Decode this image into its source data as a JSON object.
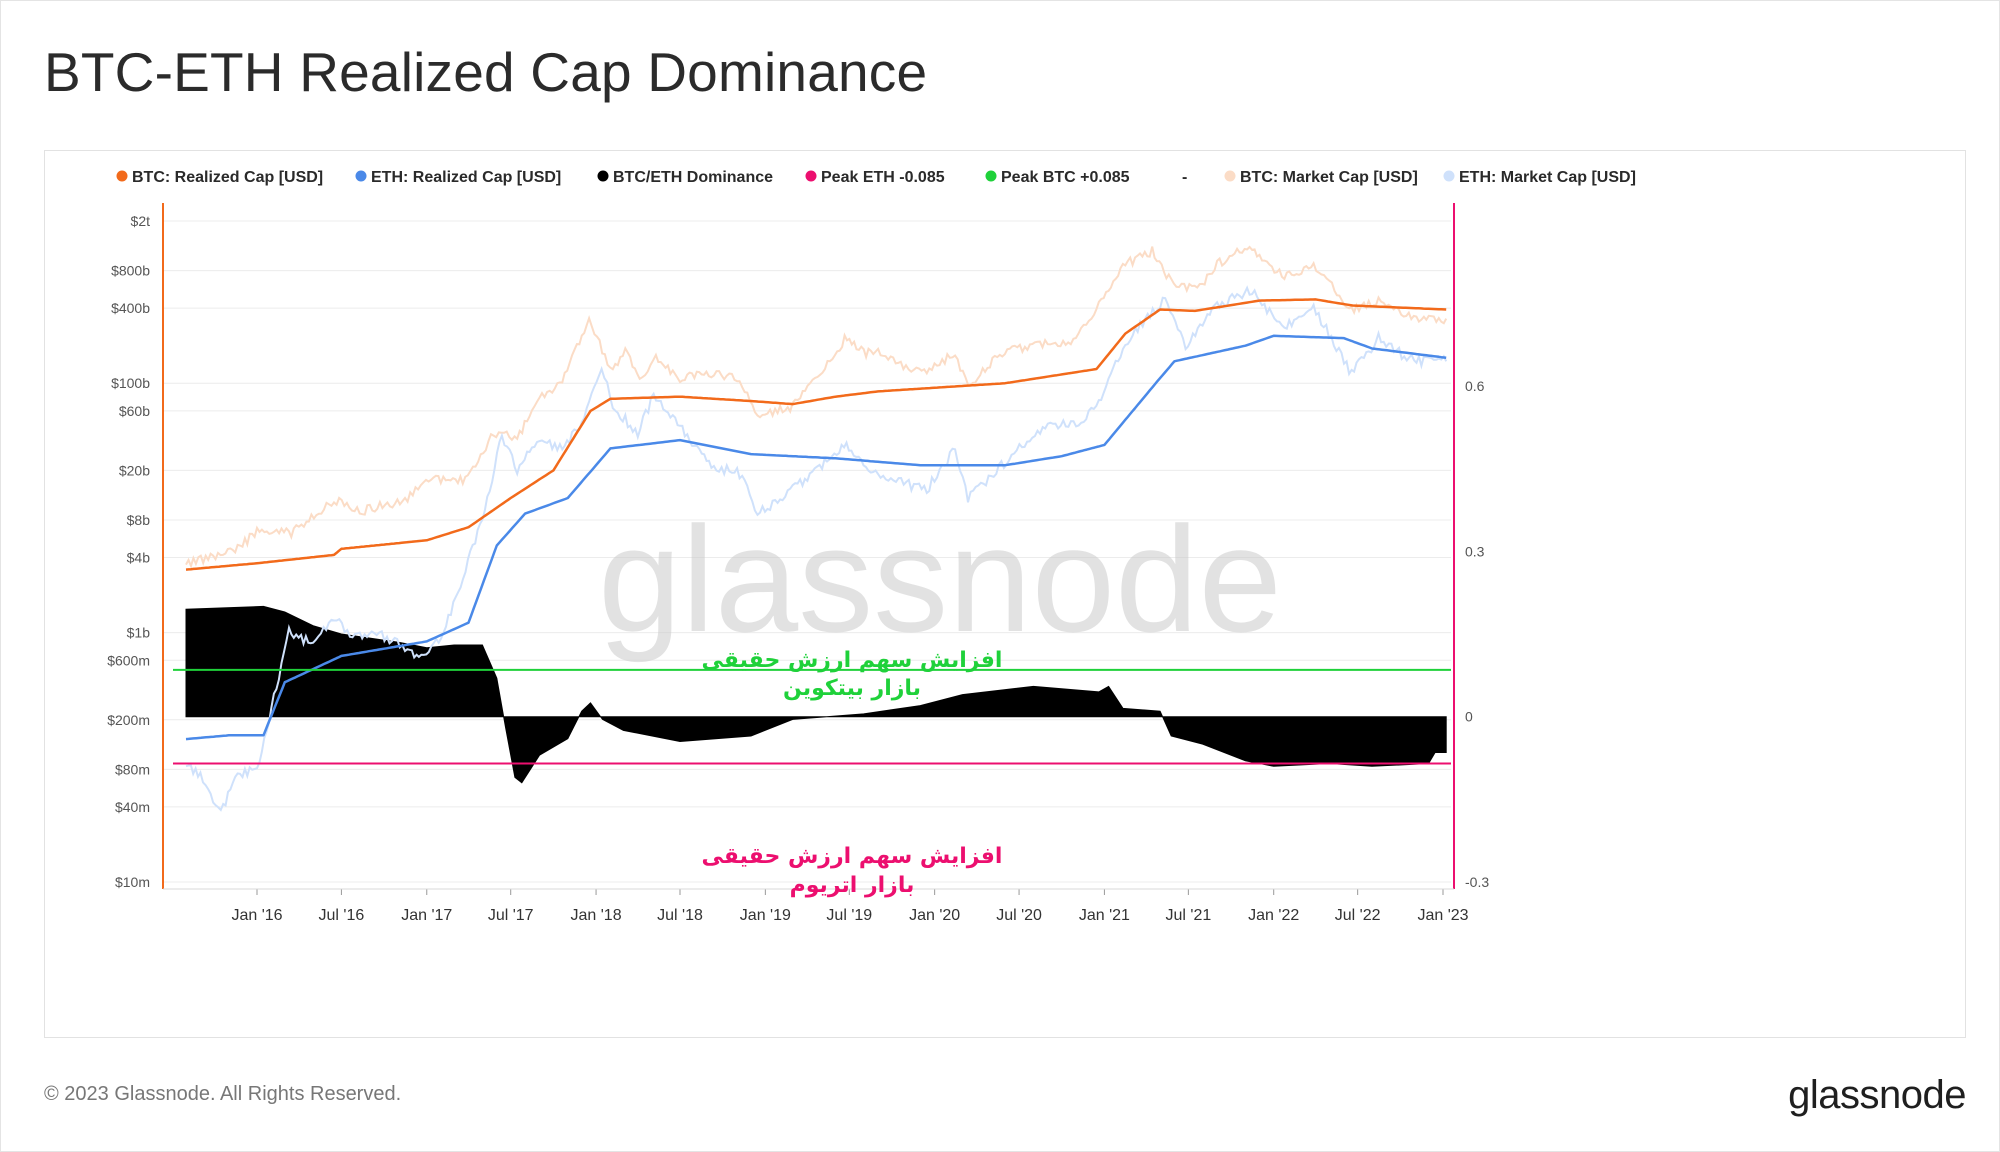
{
  "title": "BTC-ETH Realized Cap Dominance",
  "footer": {
    "copyright": "© 2023 Glassnode. All Rights Reserved.",
    "logo": "glassnode"
  },
  "watermark": "glassnode",
  "colors": {
    "btc_realized": "#f26a1b",
    "eth_realized": "#4a89e8",
    "dominance": "#000000",
    "peak_eth": "#ec0f6f",
    "peak_btc": "#1fd13a",
    "btc_market": "#fbdcc6",
    "eth_market": "#cfe1fb"
  },
  "legend": [
    {
      "label": "BTC: Realized Cap [USD]",
      "color": "#f26a1b"
    },
    {
      "label": "ETH: Realized Cap [USD]",
      "color": "#4a89e8"
    },
    {
      "label": "BTC/ETH Dominance",
      "color": "#000000"
    },
    {
      "label": "Peak ETH -0.085",
      "color": "#ec0f6f"
    },
    {
      "label": "Peak BTC +0.085",
      "color": "#1fd13a"
    },
    {
      "label": "-",
      "color": ""
    },
    {
      "label": "BTC: Market Cap [USD]",
      "color": "#fbdcc6"
    },
    {
      "label": "ETH: Market Cap [USD]",
      "color": "#cfe1fb"
    }
  ],
  "annotations": {
    "btc_zone": [
      "افزایش سهم  ارزش حقیقی",
      "بازار بیتکوین"
    ],
    "eth_zone": [
      "افزایش سهم  ارزش حقیقی",
      "بازار اتریوم"
    ]
  },
  "chart_data": {
    "type": "line",
    "title": "BTC-ETH Realized Cap Dominance",
    "x_axis": {
      "min": "2015-08-01",
      "max": "2023-01-10",
      "ticks": [
        {
          "date": "2016-01-01",
          "label": "Jan '16"
        },
        {
          "date": "2016-07-01",
          "label": "Jul '16"
        },
        {
          "date": "2017-01-01",
          "label": "Jan '17"
        },
        {
          "date": "2017-07-01",
          "label": "Jul '17"
        },
        {
          "date": "2018-01-01",
          "label": "Jan '18"
        },
        {
          "date": "2018-07-01",
          "label": "Jul '18"
        },
        {
          "date": "2019-01-01",
          "label": "Jan '19"
        },
        {
          "date": "2019-07-01",
          "label": "Jul '19"
        },
        {
          "date": "2020-01-01",
          "label": "Jan '20"
        },
        {
          "date": "2020-07-01",
          "label": "Jul '20"
        },
        {
          "date": "2021-01-01",
          "label": "Jan '21"
        },
        {
          "date": "2021-07-01",
          "label": "Jul '21"
        },
        {
          "date": "2022-01-01",
          "label": "Jan '22"
        },
        {
          "date": "2022-07-01",
          "label": "Jul '22"
        },
        {
          "date": "2023-01-01",
          "label": "Jan '23"
        }
      ]
    },
    "y_left": {
      "scale": "log",
      "range": [
        10000000,
        2000000000000
      ],
      "ticks": [
        {
          "value": 2000000000000,
          "label": "$2t"
        },
        {
          "value": 800000000000,
          "label": "$800b"
        },
        {
          "value": 400000000000,
          "label": "$400b"
        },
        {
          "value": 100000000000,
          "label": "$100b"
        },
        {
          "value": 60000000000,
          "label": "$60b"
        },
        {
          "value": 20000000000,
          "label": "$20b"
        },
        {
          "value": 8000000000,
          "label": "$8b"
        },
        {
          "value": 4000000000,
          "label": "$4b"
        },
        {
          "value": 1000000000,
          "label": "$1b"
        },
        {
          "value": 600000000,
          "label": "$600m"
        },
        {
          "value": 200000000,
          "label": "$200m"
        },
        {
          "value": 80000000,
          "label": "$80m"
        },
        {
          "value": 40000000,
          "label": "$40m"
        },
        {
          "value": 10000000,
          "label": "$10m"
        }
      ]
    },
    "y_right": {
      "scale": "linear",
      "range": [
        -0.3,
        0.7
      ],
      "ticks": [
        {
          "value": 0.6,
          "label": "0.6"
        },
        {
          "value": 0.3,
          "label": "0.3"
        },
        {
          "value": 0,
          "label": "0"
        },
        {
          "value": -0.3,
          "label": "-0.3"
        }
      ]
    },
    "grid": true,
    "legend_position": "top",
    "reference_lines": [
      {
        "name": "Peak BTC +0.085",
        "value": 0.085,
        "axis": "right"
      },
      {
        "name": "Peak ETH -0.085",
        "value": -0.085,
        "axis": "right"
      }
    ],
    "series": [
      {
        "name": "BTC: Market Cap [USD]",
        "axis": "left",
        "style": "jagged",
        "points": [
          [
            "2015-08-01",
            3600000000
          ],
          [
            "2015-11-15",
            4500000000
          ],
          [
            "2016-01-01",
            6500000000
          ],
          [
            "2016-03-15",
            6300000000
          ],
          [
            "2016-06-15",
            11500000000
          ],
          [
            "2016-08-15",
            9500000000
          ],
          [
            "2016-11-15",
            11500000000
          ],
          [
            "2017-01-05",
            17000000000
          ],
          [
            "2017-03-25",
            16500000000
          ],
          [
            "2017-05-25",
            40000000000
          ],
          [
            "2017-07-15",
            36000000000
          ],
          [
            "2017-09-01",
            75000000000
          ],
          [
            "2017-10-15",
            95000000000
          ],
          [
            "2017-12-17",
            320000000000
          ],
          [
            "2018-02-06",
            120000000000
          ],
          [
            "2018-03-05",
            190000000000
          ],
          [
            "2018-04-05",
            110000000000
          ],
          [
            "2018-05-10",
            160000000000
          ],
          [
            "2018-07-01",
            110000000000
          ],
          [
            "2018-09-01",
            120000000000
          ],
          [
            "2018-11-01",
            110000000000
          ],
          [
            "2018-12-15",
            55000000000
          ],
          [
            "2019-03-01",
            65000000000
          ],
          [
            "2019-05-15",
            140000000000
          ],
          [
            "2019-06-26",
            240000000000
          ],
          [
            "2019-08-01",
            175000000000
          ],
          [
            "2019-09-01",
            180000000000
          ],
          [
            "2019-10-20",
            140000000000
          ],
          [
            "2019-12-15",
            120000000000
          ],
          [
            "2020-02-14",
            180000000000
          ],
          [
            "2020-03-13",
            90000000000
          ],
          [
            "2020-05-15",
            170000000000
          ],
          [
            "2020-08-15",
            210000000000
          ],
          [
            "2020-10-15",
            210000000000
          ],
          [
            "2020-12-15",
            400000000000
          ],
          [
            "2021-02-15",
            900000000000
          ],
          [
            "2021-04-14",
            1150000000000
          ],
          [
            "2021-05-25",
            650000000000
          ],
          [
            "2021-07-20",
            560000000000
          ],
          [
            "2021-09-01",
            900000000000
          ],
          [
            "2021-11-10",
            1250000000000
          ],
          [
            "2022-01-24",
            700000000000
          ],
          [
            "2022-03-28",
            880000000000
          ],
          [
            "2022-05-12",
            570000000000
          ],
          [
            "2022-06-18",
            380000000000
          ],
          [
            "2022-08-15",
            460000000000
          ],
          [
            "2022-11-10",
            320000000000
          ],
          [
            "2023-01-08",
            330000000000
          ]
        ]
      },
      {
        "name": "ETH: Market Cap [USD]",
        "axis": "left",
        "style": "jagged",
        "points": [
          [
            "2015-08-01",
            90000000
          ],
          [
            "2015-09-01",
            70000000
          ],
          [
            "2015-10-15",
            35000000
          ],
          [
            "2015-11-15",
            70000000
          ],
          [
            "2016-01-01",
            80000000
          ],
          [
            "2016-02-01",
            250000000
          ],
          [
            "2016-03-10",
            1000000000
          ],
          [
            "2016-05-01",
            800000000
          ],
          [
            "2016-06-15",
            1300000000
          ],
          [
            "2016-07-25",
            900000000
          ],
          [
            "2016-09-15",
            1000000000
          ],
          [
            "2016-11-15",
            750000000
          ],
          [
            "2016-12-15",
            650000000
          ],
          [
            "2017-02-01",
            900000000
          ],
          [
            "2017-03-15",
            2500000000
          ],
          [
            "2017-05-01",
            8000000000
          ],
          [
            "2017-06-12",
            38000000000
          ],
          [
            "2017-07-15",
            20000000000
          ],
          [
            "2017-09-01",
            36000000000
          ],
          [
            "2017-10-15",
            30000000000
          ],
          [
            "2017-12-01",
            45000000000
          ],
          [
            "2018-01-13",
            135000000000
          ],
          [
            "2018-02-06",
            65000000000
          ],
          [
            "2018-04-01",
            40000000000
          ],
          [
            "2018-05-05",
            80000000000
          ],
          [
            "2018-07-01",
            45000000000
          ],
          [
            "2018-09-12",
            20000000000
          ],
          [
            "2018-11-01",
            21000000000
          ],
          [
            "2018-12-15",
            9000000000
          ],
          [
            "2019-03-01",
            14000000000
          ],
          [
            "2019-06-25",
            33000000000
          ],
          [
            "2019-09-01",
            18000000000
          ],
          [
            "2019-12-15",
            14000000000
          ],
          [
            "2020-02-14",
            30000000000
          ],
          [
            "2020-03-13",
            12000000000
          ],
          [
            "2020-06-15",
            26000000000
          ],
          [
            "2020-09-01",
            48000000000
          ],
          [
            "2020-11-01",
            45000000000
          ],
          [
            "2020-12-20",
            70000000000
          ],
          [
            "2021-02-15",
            210000000000
          ],
          [
            "2021-05-12",
            480000000000
          ],
          [
            "2021-06-25",
            200000000000
          ],
          [
            "2021-09-01",
            420000000000
          ],
          [
            "2021-11-10",
            560000000000
          ],
          [
            "2022-01-24",
            280000000000
          ],
          [
            "2022-03-28",
            410000000000
          ],
          [
            "2022-06-18",
            120000000000
          ],
          [
            "2022-08-15",
            230000000000
          ],
          [
            "2022-10-15",
            160000000000
          ],
          [
            "2022-11-10",
            150000000000
          ],
          [
            "2023-01-08",
            150000000000
          ]
        ]
      },
      {
        "name": "BTC: Realized Cap [USD]",
        "axis": "left",
        "style": "smooth",
        "points": [
          [
            "2015-08-01",
            3200000000
          ],
          [
            "2016-01-01",
            3600000000
          ],
          [
            "2016-06-15",
            4200000000
          ],
          [
            "2016-07-01",
            4700000000
          ],
          [
            "2017-01-01",
            5500000000
          ],
          [
            "2017-04-01",
            7000000000
          ],
          [
            "2017-07-01",
            12000000000
          ],
          [
            "2017-10-01",
            20000000000
          ],
          [
            "2017-12-20",
            60000000000
          ],
          [
            "2018-02-01",
            75000000000
          ],
          [
            "2018-07-01",
            78000000000
          ],
          [
            "2018-12-01",
            72000000000
          ],
          [
            "2019-03-01",
            68000000000
          ],
          [
            "2019-06-01",
            78000000000
          ],
          [
            "2019-09-01",
            86000000000
          ],
          [
            "2020-01-01",
            92000000000
          ],
          [
            "2020-06-01",
            100000000000
          ],
          [
            "2020-12-15",
            130000000000
          ],
          [
            "2021-02-15",
            250000000000
          ],
          [
            "2021-05-01",
            390000000000
          ],
          [
            "2021-07-15",
            380000000000
          ],
          [
            "2021-12-01",
            460000000000
          ],
          [
            "2022-04-01",
            470000000000
          ],
          [
            "2022-06-20",
            420000000000
          ],
          [
            "2023-01-08",
            390000000000
          ]
        ]
      },
      {
        "name": "ETH: Realized Cap [USD]",
        "axis": "left",
        "style": "smooth",
        "points": [
          [
            "2015-08-01",
            140000000
          ],
          [
            "2015-11-01",
            150000000
          ],
          [
            "2016-01-15",
            150000000
          ],
          [
            "2016-03-01",
            400000000
          ],
          [
            "2016-07-01",
            650000000
          ],
          [
            "2017-01-01",
            850000000
          ],
          [
            "2017-04-01",
            1200000000
          ],
          [
            "2017-06-01",
            5000000000
          ],
          [
            "2017-08-01",
            9000000000
          ],
          [
            "2017-11-01",
            12000000000
          ],
          [
            "2018-02-01",
            30000000000
          ],
          [
            "2018-07-01",
            35000000000
          ],
          [
            "2018-12-01",
            27000000000
          ],
          [
            "2019-06-01",
            25000000000
          ],
          [
            "2019-12-01",
            22000000000
          ],
          [
            "2020-06-01",
            22000000000
          ],
          [
            "2020-10-01",
            26000000000
          ],
          [
            "2021-01-01",
            32000000000
          ],
          [
            "2021-05-01",
            110000000000
          ],
          [
            "2021-06-01",
            150000000000
          ],
          [
            "2021-11-01",
            200000000000
          ],
          [
            "2022-01-01",
            240000000000
          ],
          [
            "2022-06-01",
            230000000000
          ],
          [
            "2022-08-01",
            190000000000
          ],
          [
            "2023-01-08",
            160000000000
          ]
        ]
      },
      {
        "name": "BTC/ETH Dominance",
        "axis": "right",
        "style": "area",
        "points": [
          [
            "2015-08-01",
            0.195
          ],
          [
            "2016-01-15",
            0.2
          ],
          [
            "2016-03-01",
            0.19
          ],
          [
            "2016-05-01",
            0.165
          ],
          [
            "2016-07-01",
            0.15
          ],
          [
            "2016-11-01",
            0.135
          ],
          [
            "2017-01-01",
            0.125
          ],
          [
            "2017-03-01",
            0.13
          ],
          [
            "2017-05-01",
            0.13
          ],
          [
            "2017-06-01",
            0.07
          ],
          [
            "2017-06-20",
            -0.02
          ],
          [
            "2017-07-10",
            -0.11
          ],
          [
            "2017-07-25",
            -0.12
          ],
          [
            "2017-09-01",
            -0.07
          ],
          [
            "2017-11-01",
            -0.04
          ],
          [
            "2017-12-01",
            0.01
          ],
          [
            "2017-12-20",
            0.025
          ],
          [
            "2018-01-15",
            -0.005
          ],
          [
            "2018-03-01",
            -0.025
          ],
          [
            "2018-07-01",
            -0.045
          ],
          [
            "2018-12-01",
            -0.035
          ],
          [
            "2019-03-01",
            -0.005
          ],
          [
            "2019-08-01",
            0.005
          ],
          [
            "2019-12-01",
            0.02
          ],
          [
            "2020-03-01",
            0.04
          ],
          [
            "2020-08-01",
            0.055
          ],
          [
            "2020-12-20",
            0.045
          ],
          [
            "2021-01-10",
            0.055
          ],
          [
            "2021-02-10",
            0.015
          ],
          [
            "2021-05-01",
            0.01
          ],
          [
            "2021-05-25",
            -0.035
          ],
          [
            "2021-08-01",
            -0.05
          ],
          [
            "2021-11-01",
            -0.08
          ],
          [
            "2022-01-01",
            -0.09
          ],
          [
            "2022-05-01",
            -0.085
          ],
          [
            "2022-08-01",
            -0.09
          ],
          [
            "2022-12-01",
            -0.085
          ],
          [
            "2022-12-15",
            -0.065
          ],
          [
            "2023-01-08",
            -0.065
          ]
        ]
      }
    ]
  }
}
